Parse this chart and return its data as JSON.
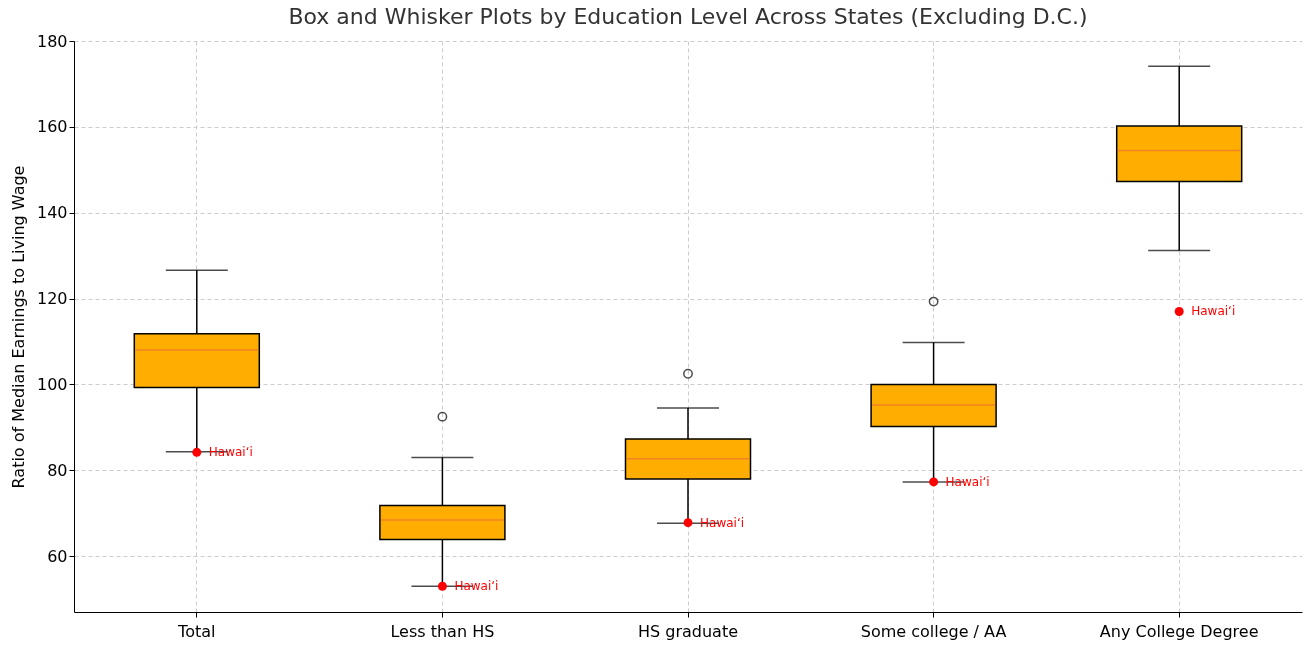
{
  "chart_data": {
    "type": "box",
    "title": "Box and Whisker Plots by Education Level Across States (Excluding D.C.)",
    "ylabel": "Ratio of Median Earnings to Living Wage",
    "categories": [
      "Total",
      "Less than HS",
      "HS graduate",
      "Some college / AA",
      "Any College Degree"
    ],
    "ylim": [
      47,
      180
    ],
    "yticks": [
      60,
      80,
      100,
      120,
      140,
      160,
      180
    ],
    "grid": true,
    "series": [
      {
        "color": "#ffae00",
        "boxes": [
          {
            "low": 84.3,
            "q1": 99.3,
            "median": 108,
            "q3": 111.8,
            "high": 126.6
          },
          {
            "low": 53,
            "q1": 63.9,
            "median": 68.4,
            "q3": 71.8,
            "high": 83,
            "outliers": [
              92.5
            ]
          },
          {
            "low": 67.7,
            "q1": 78,
            "median": 82.7,
            "q3": 87.3,
            "high": 94.5,
            "outliers": [
              102.5
            ]
          },
          {
            "low": 77.3,
            "q1": 90.2,
            "median": 95.2,
            "q3": 100,
            "high": 109.8,
            "outliers": [
              119.3
            ]
          },
          {
            "low": 131.2,
            "q1": 147.3,
            "median": 154.5,
            "q3": 160.2,
            "high": 174.1
          }
        ]
      },
      {
        "type": "scatter",
        "color": "#ff0000",
        "marker": "circle",
        "x": [
          "Total",
          "Less than HS",
          "HS graduate",
          "Some college / AA",
          "Any College Degree"
        ],
        "values": [
          84.2,
          53,
          67.8,
          77.3,
          117
        ]
      }
    ],
    "annotations": [
      {
        "text": "Hawaiʻi",
        "x": "Total",
        "y": 84.2
      },
      {
        "text": "Hawaiʻi",
        "x": "Less than HS",
        "y": 53
      },
      {
        "text": "Hawaiʻi",
        "x": "HS graduate",
        "y": 67.8
      },
      {
        "text": "Hawaiʻi",
        "x": "Some college / AA",
        "y": 77.3
      },
      {
        "text": "Hawaiʻi",
        "x": "Any College Degree",
        "y": 117
      }
    ]
  }
}
